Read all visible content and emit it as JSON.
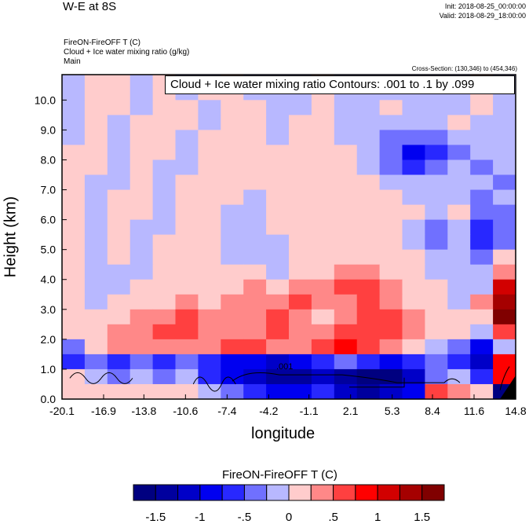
{
  "header": {
    "title": "W-E at 8S",
    "init": "Init: 2018-08-25_00:00:00",
    "valid": "Valid: 2018-08-29_18:00:00",
    "field1": "FireON-FireOFF T   (C)",
    "field2": "Cloud + Ice water mixing ratio   (g/kg)",
    "domain": "Main",
    "cross_section": "Cross-Section: (130,346) to (454,346)"
  },
  "chart_data": {
    "type": "heatmap",
    "title": "W-E at 8S",
    "xlabel": "longitude",
    "ylabel": "Height (km)",
    "xlim": [
      -20.1,
      14.8
    ],
    "ylim": [
      0,
      10.85
    ],
    "xticks": [
      "-20.1",
      "-16.9",
      "-13.8",
      "-10.6",
      "-7.4",
      "-4.2",
      "-1.1",
      "2.1",
      "5.3",
      "8.4",
      "11.6",
      "14.8"
    ],
    "yticks": [
      "0.0",
      "1.0",
      "2.0",
      "3.0",
      "4.0",
      "5.0",
      "6.0",
      "7.0",
      "8.0",
      "9.0",
      "10.0"
    ],
    "contour_annotation": "Cloud + Ice water mixing ratio Contours: .001 to .1 by .099",
    "contour_label": ".001",
    "grid_dx_lon": 1.745,
    "grid_dz_km": 0.5,
    "values_rows_top_to_bottom": [
      [
        -0.1,
        0.1,
        0.1,
        -0.1,
        0.1,
        -0.1,
        -0.1,
        0.1,
        -0.1,
        -0.1,
        -0.1,
        0.1,
        -0.1,
        -0.1,
        -0.1,
        -0.1,
        -0.1,
        -0.1,
        0.1,
        -0.1
      ],
      [
        -0.1,
        0.1,
        0.1,
        -0.1,
        0.1,
        -0.1,
        0.1,
        0.1,
        -0.1,
        -0.1,
        -0.1,
        0.1,
        -0.1,
        -0.1,
        -0.1,
        -0.1,
        -0.1,
        -0.1,
        0.1,
        -0.1
      ],
      [
        -0.1,
        0.1,
        0.1,
        -0.1,
        0.1,
        0.1,
        -0.1,
        0.1,
        0.1,
        -0.1,
        -0.1,
        0.1,
        -0.1,
        -0.1,
        0.1,
        -0.1,
        -0.1,
        -0.1,
        0.1,
        -0.1
      ],
      [
        -0.1,
        0.1,
        -0.1,
        0.1,
        0.1,
        0.1,
        -0.1,
        0.1,
        0.1,
        -0.1,
        0.1,
        0.1,
        -0.1,
        -0.1,
        -0.1,
        -0.1,
        -0.1,
        0.1,
        -0.1,
        -0.1
      ],
      [
        -0.1,
        0.1,
        -0.1,
        0.1,
        0.1,
        -0.1,
        0.1,
        0.1,
        0.1,
        -0.1,
        0.1,
        0.1,
        -0.1,
        -0.1,
        -0.3,
        -0.4,
        -0.3,
        -0.1,
        -0.1,
        -0.1
      ],
      [
        0.1,
        0.1,
        -0.1,
        0.1,
        0.1,
        -0.1,
        0.1,
        0.1,
        0.1,
        0.1,
        0.1,
        0.1,
        0.1,
        -0.1,
        -0.4,
        -0.9,
        -0.6,
        -0.3,
        -0.1,
        -0.1
      ],
      [
        0.1,
        0.1,
        -0.1,
        0.1,
        -0.1,
        -0.1,
        0.1,
        0.1,
        0.1,
        0.1,
        0.1,
        0.1,
        0.1,
        -0.1,
        -0.3,
        -0.6,
        -0.4,
        -0.1,
        -0.3,
        -0.1
      ],
      [
        0.1,
        -0.1,
        -0.1,
        0.1,
        -0.1,
        0.1,
        0.1,
        0.1,
        0.1,
        0.1,
        0.1,
        0.1,
        0.1,
        0.1,
        -0.1,
        -0.1,
        -0.1,
        -0.1,
        -0.1,
        -0.3
      ],
      [
        0.1,
        -0.1,
        0.1,
        0.1,
        -0.1,
        0.1,
        0.1,
        0.1,
        -0.1,
        0.1,
        0.1,
        0.1,
        0.1,
        0.1,
        0.1,
        -0.1,
        -0.1,
        -0.1,
        -0.3,
        -0.1
      ],
      [
        0.1,
        -0.1,
        0.1,
        0.1,
        -0.1,
        0.1,
        0.1,
        -0.1,
        -0.1,
        0.1,
        0.1,
        0.1,
        0.1,
        0.1,
        0.1,
        0.1,
        -0.1,
        0.1,
        -0.3,
        -0.3
      ],
      [
        0.1,
        -0.1,
        0.1,
        -0.1,
        -0.1,
        0.1,
        0.1,
        -0.1,
        -0.1,
        0.1,
        0.1,
        0.1,
        0.1,
        0.1,
        0.1,
        -0.1,
        -0.4,
        -0.1,
        -0.6,
        -0.3
      ],
      [
        0.1,
        -0.1,
        0.1,
        -0.1,
        0.1,
        0.1,
        0.1,
        -0.1,
        -0.1,
        -0.1,
        0.1,
        0.1,
        0.1,
        0.1,
        0.1,
        -0.1,
        -0.3,
        -0.1,
        -0.6,
        -0.4
      ],
      [
        0.1,
        -0.1,
        0.1,
        -0.1,
        0.1,
        0.1,
        0.1,
        -0.1,
        -0.1,
        -0.1,
        0.1,
        0.1,
        0.1,
        0.1,
        0.1,
        0.1,
        -0.1,
        -0.1,
        -0.4,
        0.1
      ],
      [
        0.1,
        -0.1,
        -0.1,
        -0.1,
        0.1,
        0.1,
        0.1,
        0.1,
        0.1,
        -0.1,
        0.1,
        0.1,
        0.4,
        0.4,
        0.1,
        0.1,
        -0.1,
        -0.1,
        -0.1,
        0.4
      ],
      [
        0.1,
        -0.1,
        -0.1,
        0.1,
        0.1,
        0.1,
        0.1,
        0.1,
        0.4,
        0.1,
        0.4,
        0.4,
        0.6,
        0.6,
        0.4,
        0.1,
        0.1,
        -0.1,
        -0.1,
        1.1
      ],
      [
        0.1,
        -0.1,
        0.1,
        0.1,
        0.1,
        0.4,
        0.1,
        0.4,
        0.4,
        0.4,
        0.6,
        0.4,
        0.4,
        0.6,
        0.4,
        0.1,
        0.1,
        -0.1,
        0.4,
        1.4
      ],
      [
        0.1,
        0.1,
        0.1,
        0.4,
        0.4,
        0.6,
        0.4,
        0.4,
        0.4,
        0.6,
        0.4,
        0.1,
        0.4,
        0.6,
        0.6,
        0.4,
        0.1,
        0.1,
        0.1,
        1.6
      ],
      [
        0.1,
        0.1,
        0.4,
        0.4,
        0.6,
        0.6,
        0.4,
        0.4,
        0.4,
        0.6,
        0.4,
        0.4,
        0.6,
        0.6,
        0.6,
        0.4,
        0.1,
        0.1,
        -0.1,
        0.6
      ],
      [
        -0.3,
        0.1,
        0.4,
        0.4,
        0.4,
        0.4,
        0.4,
        0.6,
        0.6,
        0.4,
        0.4,
        0.6,
        0.9,
        0.6,
        0.4,
        0.1,
        -0.1,
        -0.4,
        -0.9,
        -0.1
      ],
      [
        -0.6,
        -0.3,
        -0.6,
        -0.4,
        -0.6,
        -0.4,
        -0.6,
        -0.9,
        -0.9,
        -1.1,
        -0.9,
        -0.6,
        -0.4,
        -0.6,
        -0.9,
        -0.6,
        -0.4,
        -0.6,
        -1.1,
        0.9
      ],
      [
        0.1,
        -0.1,
        -0.4,
        -0.1,
        -0.4,
        -0.1,
        -0.6,
        -0.9,
        -1.1,
        -1.4,
        -1.4,
        -1.1,
        -1.4,
        -1.6,
        -1.6,
        -1.1,
        -0.4,
        -0.1,
        -0.6,
        0.9
      ],
      [
        0.1,
        0.1,
        0.1,
        0.1,
        0.1,
        0.1,
        -0.1,
        -0.4,
        -0.6,
        -0.9,
        -0.9,
        -0.6,
        -1.1,
        -1.4,
        -1.1,
        -0.9,
        0.6,
        0.4,
        0.1,
        -1.6
      ]
    ],
    "colorbar": {
      "title": "FireON-FireOFF T  (C)",
      "levels": [
        -1.5,
        -1.25,
        -1,
        -0.75,
        -0.5,
        -0.25,
        0,
        0.25,
        0.5,
        0.75,
        1,
        1.25,
        1.5
      ],
      "labels": [
        "-1.5",
        "-1",
        "-.5",
        "0",
        ".5",
        "1",
        "1.5"
      ],
      "colors": [
        "#000080",
        "#00009e",
        "#0000c8",
        "#0000f0",
        "#2828ff",
        "#7070ff",
        "#b8b8ff",
        "#ffcccc",
        "#ff8888",
        "#ff4040",
        "#ff0000",
        "#d20000",
        "#a50000",
        "#800000"
      ]
    }
  }
}
